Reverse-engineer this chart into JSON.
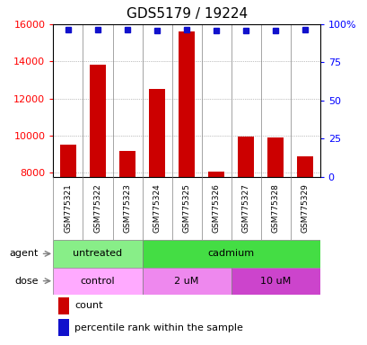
{
  "title": "GDS5179 / 19224",
  "samples": [
    "GSM775321",
    "GSM775322",
    "GSM775323",
    "GSM775324",
    "GSM775325",
    "GSM775326",
    "GSM775327",
    "GSM775328",
    "GSM775329"
  ],
  "counts": [
    9500,
    13800,
    9200,
    12500,
    15600,
    8050,
    9950,
    9900,
    8900
  ],
  "percentile_ranks": [
    96.5,
    96.5,
    96.5,
    96.0,
    96.5,
    96.0,
    95.8,
    96.0,
    96.5
  ],
  "ylim_left": [
    7800,
    16000
  ],
  "ylim_right": [
    0,
    100
  ],
  "y_ticks_left": [
    8000,
    10000,
    12000,
    14000,
    16000
  ],
  "y_ticks_right": [
    0,
    25,
    50,
    75,
    100
  ],
  "bar_color": "#cc0000",
  "dot_color": "#1111cc",
  "agent_groups": [
    {
      "label": "untreated",
      "start": 0,
      "end": 3,
      "color": "#88ee88"
    },
    {
      "label": "cadmium",
      "start": 3,
      "end": 9,
      "color": "#44dd44"
    }
  ],
  "dose_groups": [
    {
      "label": "control",
      "start": 0,
      "end": 3,
      "color": "#ffaaff"
    },
    {
      "label": "2 uM",
      "start": 3,
      "end": 6,
      "color": "#ee88ee"
    },
    {
      "label": "10 uM",
      "start": 6,
      "end": 9,
      "color": "#cc44cc"
    }
  ],
  "sample_bg_color": "#dddddd",
  "grid_color": "#888888",
  "background_color": "#ffffff",
  "title_fontsize": 11,
  "bar_width": 0.55
}
